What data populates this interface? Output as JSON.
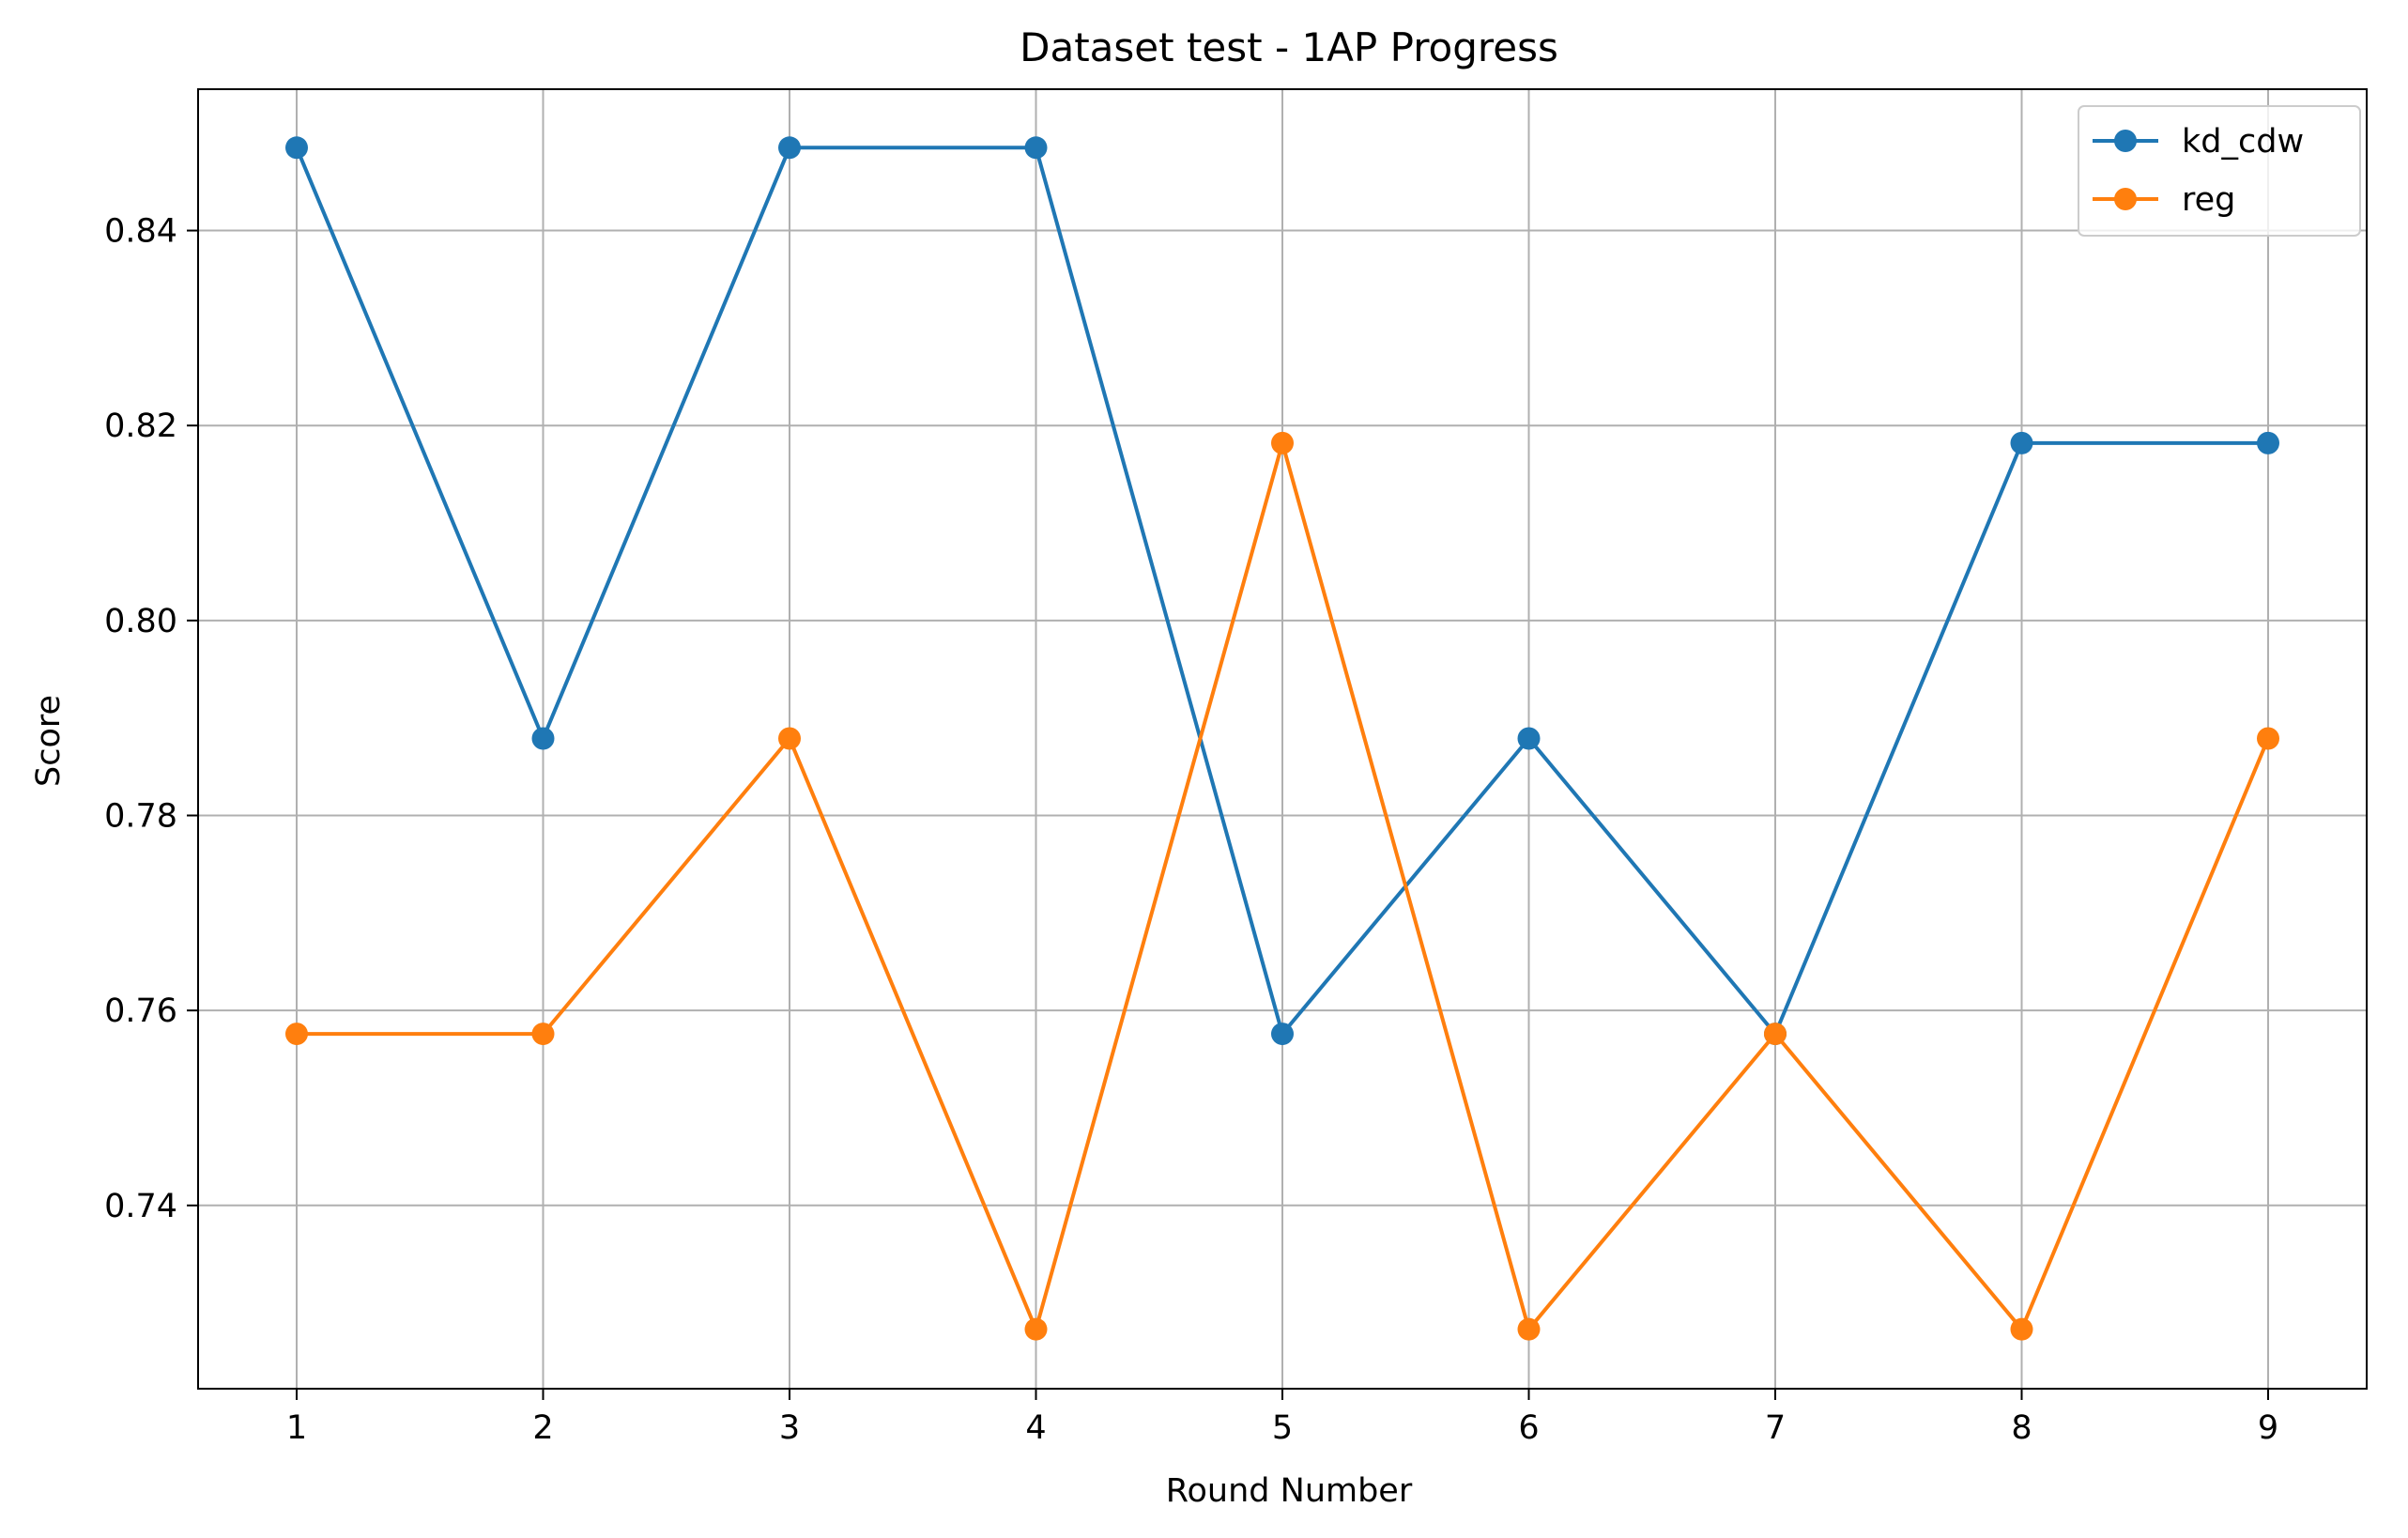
{
  "chart_data": {
    "type": "line",
    "title": "Dataset test - 1AP Progress",
    "xlabel": "Round Number",
    "ylabel": "Score",
    "x": [
      1,
      2,
      3,
      4,
      5,
      6,
      7,
      8,
      9
    ],
    "xticks": [
      "1",
      "2",
      "3",
      "4",
      "5",
      "6",
      "7",
      "8",
      "9"
    ],
    "yticks": [
      "0.74",
      "0.76",
      "0.78",
      "0.80",
      "0.82",
      "0.84"
    ],
    "xlim": [
      0.6,
      9.4
    ],
    "ylim": [
      0.7212,
      0.8545
    ],
    "grid": true,
    "legend_position": "upper-right",
    "series": [
      {
        "name": "kd_cdw",
        "color": "#1f77b4",
        "marker": "circle",
        "values": [
          0.8485,
          0.7879,
          0.8485,
          0.8485,
          0.7576,
          0.7879,
          0.7576,
          0.8182,
          0.8182
        ]
      },
      {
        "name": "reg",
        "color": "#ff7f0e",
        "marker": "circle",
        "values": [
          0.7576,
          0.7576,
          0.7879,
          0.7273,
          0.8182,
          0.7273,
          0.7576,
          0.7273,
          0.7879
        ]
      }
    ]
  }
}
